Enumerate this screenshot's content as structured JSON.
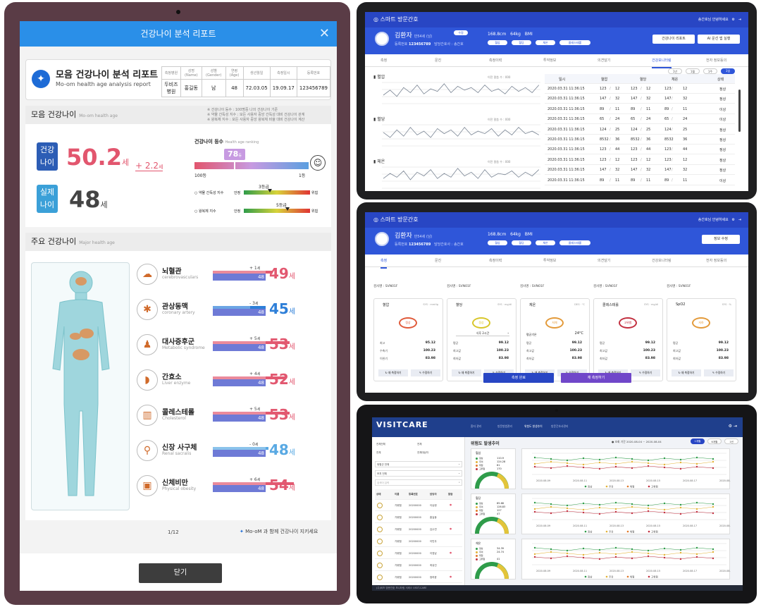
{
  "left_tablet": {
    "header_title": "건강나이 분석 리포트",
    "report": {
      "title": "모음 건강나이 분석 리포트",
      "subtitle": "Mo-om health age analysis report",
      "table_headers": [
        "측정병원",
        "성명(Name)",
        "성별(Gender)",
        "연령(Age)",
        "생년월일",
        "측정일시",
        "등록번호"
      ],
      "table_values": [
        "두비즈 병원",
        "홍길동",
        "남",
        "48",
        "72.03.05",
        "19.09.17",
        "123456789"
      ]
    },
    "section1": {
      "title": "모음 건강나이",
      "en": "Mo-om health age",
      "health_label": [
        "건강",
        "나이"
      ],
      "health_age": "50.2",
      "unit": "세",
      "diff": "+ 2.2",
      "diff_unit": "세",
      "real_label": [
        "실제",
        "나이"
      ],
      "real_age": "48",
      "ranking_title": "건강나이 등수",
      "ranking_en": "Health age ranking",
      "ranking_value": "78",
      "ranking_unit": "등",
      "rank_left": "100등",
      "rank_right": "1등",
      "rank_fraction": 0.78,
      "idx1_label": "약물 간독성 지수",
      "idx1_grade": "3등급",
      "idx2_label": "왕복체 지수",
      "idx2_grade": "5등급",
      "safe": "안정",
      "danger": "위험",
      "notes": [
        "※ 건강나이 등수 : 100명중 나의 건강나이 기준",
        "※ 약물 간독성 지수 : 모든 사용자 중앙 간독성 대비 건강나이 관계",
        "※ 왕복체 지수 : 모든 사용자 중앙 왕복체 비율 대비 건강나이 계산"
      ]
    },
    "section2": {
      "title": "주요 건강나이",
      "en": "Major health age",
      "real_age": "48",
      "unit": "세",
      "organs": [
        {
          "name": "뇌혈관",
          "en": "cerebrovasculars",
          "icon": "brain-icon",
          "diff": "+ 1",
          "diff_unit": "세",
          "age": "49",
          "color": "#e25870"
        },
        {
          "name": "관상동맥",
          "en": "coronary artery",
          "icon": "artery-icon",
          "diff": "- 3",
          "diff_unit": "세",
          "age": "45",
          "color": "#2e7fd8"
        },
        {
          "name": "대사증후군",
          "en": "Metabolic syndrome",
          "icon": "body-icon",
          "diff": "+ 5",
          "diff_unit": "세",
          "age": "53",
          "color": "#e25870"
        },
        {
          "name": "간효소",
          "en": "Liver enzyme",
          "icon": "liver-icon",
          "diff": "+ 4",
          "diff_unit": "세",
          "age": "52",
          "color": "#e25870"
        },
        {
          "name": "콜레스테롤",
          "en": "Cholesterol",
          "icon": "cholesterol-icon",
          "diff": "+ 5",
          "diff_unit": "세",
          "age": "53",
          "color": "#e25870"
        },
        {
          "name": "신장 사구체",
          "en": "Renal sacralis",
          "icon": "kidney-icon",
          "diff": "- 0",
          "diff_unit": "세",
          "age": "48",
          "color": "#59a9e3"
        },
        {
          "name": "신체비만",
          "en": "Physical obesity",
          "icon": "obesity-icon",
          "diff": "+ 6",
          "diff_unit": "세",
          "age": "54",
          "color": "#e25870"
        }
      ]
    },
    "pager": "1/12",
    "brand_note": "Mo-oM 과 함께 건강나이 지키세요",
    "close": "닫기"
  },
  "top_right": {
    "app_title": "스마트 방문간호",
    "user_greeting": "송간호님 안녕하세요",
    "patient_name": "김환자",
    "patient_sub": "만54세 (남)",
    "patient_tag": "수정",
    "reg_label": "등록번호",
    "reg_no": "123456789",
    "nurse_label": "담당간호사 : 송간호",
    "height": "168.8cm",
    "weight": "64kg",
    "bmi": "BMI",
    "pills": [
      "혈압",
      "혈당",
      "체온",
      "콜레스테롤"
    ],
    "btn_report": "건강나이 리포트",
    "btn_app": "AI 운선 앱 실행",
    "tabs": [
      "측정",
      "문진",
      "측정이력",
      "투약정보",
      "의견달기",
      "건강모니터링",
      "전자 정보동의"
    ],
    "active_tab": 5,
    "periods": [
      "1년",
      "1월",
      "1주",
      "1일"
    ],
    "chart_labels": [
      "혈압",
      "혈당",
      "체온"
    ],
    "chart_note": "이전 말씀 수 : 000",
    "table_headers": [
      "일시",
      "혈압",
      "혈당",
      "체온",
      "상태"
    ],
    "table_rows": [
      [
        "2020.03.31 11:36:15",
        "123",
        "12",
        "123",
        "12",
        "123",
        "12",
        "정상"
      ],
      [
        "2020.03.31 11:36:15",
        "147",
        "32",
        "147",
        "32",
        "147",
        "32",
        "정상"
      ],
      [
        "2020.03.31 11:36:15",
        "89",
        "11",
        "89",
        "11",
        "89",
        "11",
        "이상"
      ],
      [
        "2020.03.31 11:36:15",
        "65",
        "24",
        "65",
        "24",
        "65",
        "24",
        "이상"
      ],
      [
        "2020.03.31 11:36:15",
        "124",
        "25",
        "124",
        "25",
        "124",
        "25",
        "정상"
      ],
      [
        "2020.03.31 11:36:15",
        "8532",
        "36",
        "8532",
        "36",
        "8532",
        "36",
        "정상"
      ],
      [
        "2020.03.31 11:36:15",
        "123",
        "44",
        "123",
        "44",
        "123",
        "44",
        "정상"
      ],
      [
        "2020.03.31 11:36:15",
        "123",
        "12",
        "123",
        "12",
        "123",
        "12",
        "정상"
      ],
      [
        "2020.03.31 11:36:15",
        "147",
        "32",
        "147",
        "32",
        "147",
        "32",
        "정상"
      ],
      [
        "2020.03.31 11:36:15",
        "89",
        "11",
        "89",
        "11",
        "89",
        "11",
        "이상"
      ]
    ]
  },
  "mid_right": {
    "app_title": "스마트 방문간호",
    "user_greeting": "송간호님 안녕하세요",
    "btn_info": "정보 수정",
    "tabs": [
      "측정",
      "문진",
      "측정이력",
      "투약정보",
      "의견달기",
      "건강모니터링",
      "전자 정보동의"
    ],
    "active_tab": 0,
    "cards": [
      {
        "device": "검사명 : SVN01F",
        "title": "혈압",
        "unit": "SYS · mmHg",
        "ring": "정상",
        "ring_color": "#e05a3a",
        "rows": [
          [
            "최고",
            "95.12"
          ],
          [
            "수축기",
            "100.23"
          ],
          [
            "이완기",
            "83.98"
          ]
        ]
      },
      {
        "device": "검사명 : SVN01F",
        "title": "혈당",
        "unit": "SYS · mg/dl",
        "ring": "정상",
        "ring_color": "#d8c62a",
        "select": "식후 2시간",
        "rows": [
          [
            "평균",
            "99.12"
          ],
          [
            "최고값",
            "100.23"
          ],
          [
            "최저값",
            "83.98"
          ]
        ]
      },
      {
        "device": "검사명 : SVN01F",
        "title": "체온",
        "unit": "DEG · ℃",
        "ring": "저체",
        "ring_color": "#e39a3a",
        "extra": "24°C",
        "extra_label": "평균기온",
        "rows": [
          [
            "평균",
            "99.12"
          ],
          [
            "최고값",
            "100.23"
          ],
          [
            "최저값",
            "83.98"
          ]
        ]
      },
      {
        "device": "검사명 : SVN01F",
        "title": "콜레스테롤",
        "unit": "SYS · mg/dl",
        "ring": "고위험",
        "ring_color": "#c23040",
        "rows": [
          [
            "평균",
            "99.12"
          ],
          [
            "최고값",
            "100.23"
          ],
          [
            "최저값",
            "83.98"
          ]
        ]
      },
      {
        "device": "검사명 : SVN01F",
        "title": "SpO2",
        "unit": "SYS · %",
        "ring": "저하",
        "ring_color": "#e39a3a",
        "rows": [
          [
            "평균",
            "99.12"
          ],
          [
            "최고값",
            "100.23"
          ],
          [
            "최저값",
            "83.98"
          ]
        ]
      }
    ],
    "btn_remeasure": "재 측정하기",
    "btn_manual": "수정하기",
    "btn_done": "측정 완료",
    "btn_again": "재 측정하기"
  },
  "bottom_right": {
    "logo": "VISITCARE",
    "nav": [
      "환자 관리",
      "방문방법관리",
      "위험도 발생추이",
      "방문간호사관리"
    ],
    "section_title": "위험도 발생추이",
    "period_label": "조회 기간",
    "date_from": "2020-08-04",
    "date_to": "2020-08-04",
    "period_btns": [
      "1개월",
      "6개월",
      "1년"
    ],
    "filters": [
      [
        "전체전체",
        "전체"
      ],
      [
        "전체",
        "전체대상자"
      ]
    ],
    "selects": [
      "위험군 전체",
      "조치 전체"
    ],
    "search_placeholder": "검색어 입력",
    "table_headers": [
      "상태",
      "이름",
      "등록번호",
      "담당자",
      "알람"
    ],
    "patients": [
      [
        "가위험",
        "20200000",
        "이승현"
      ],
      [
        "가위험",
        "20200000",
        "홍길동"
      ],
      [
        "가위험",
        "20200000",
        "김수연"
      ],
      [
        "가위험",
        "20200000",
        "이민우"
      ],
      [
        "가위험",
        "20200000",
        "이영남"
      ],
      [
        "가위험",
        "20200000",
        "최유진"
      ],
      [
        "가위험",
        "20200000",
        "정하윤"
      ]
    ],
    "gauges": [
      {
        "title": "혈압",
        "vals": [
          "110.9",
          "124.28",
          "81",
          "170"
        ]
      },
      {
        "title": "혈당",
        "vals": [
          "85.68",
          "126.83",
          "127",
          "47"
        ]
      },
      {
        "title": "체온",
        "vals": [
          "34.39",
          "24.74",
          "",
          "41"
        ]
      }
    ],
    "legend": [
      "정상",
      "주의",
      "위험",
      "고위험"
    ],
    "x_dates": [
      "2020.08.09",
      "2020.08.11",
      "2020.08.13",
      "2020.08.15",
      "2020.08.17",
      "2020.08.19"
    ],
    "footer": "(주)비즈 방문간호 모니터링 서비스 VISIT-CARE"
  },
  "colors": {
    "accent": "#2a8fe8",
    "navy": "#2846c4",
    "red": "#e25870",
    "blue": "#2e7fd8",
    "violet": "#6e7ad6"
  }
}
